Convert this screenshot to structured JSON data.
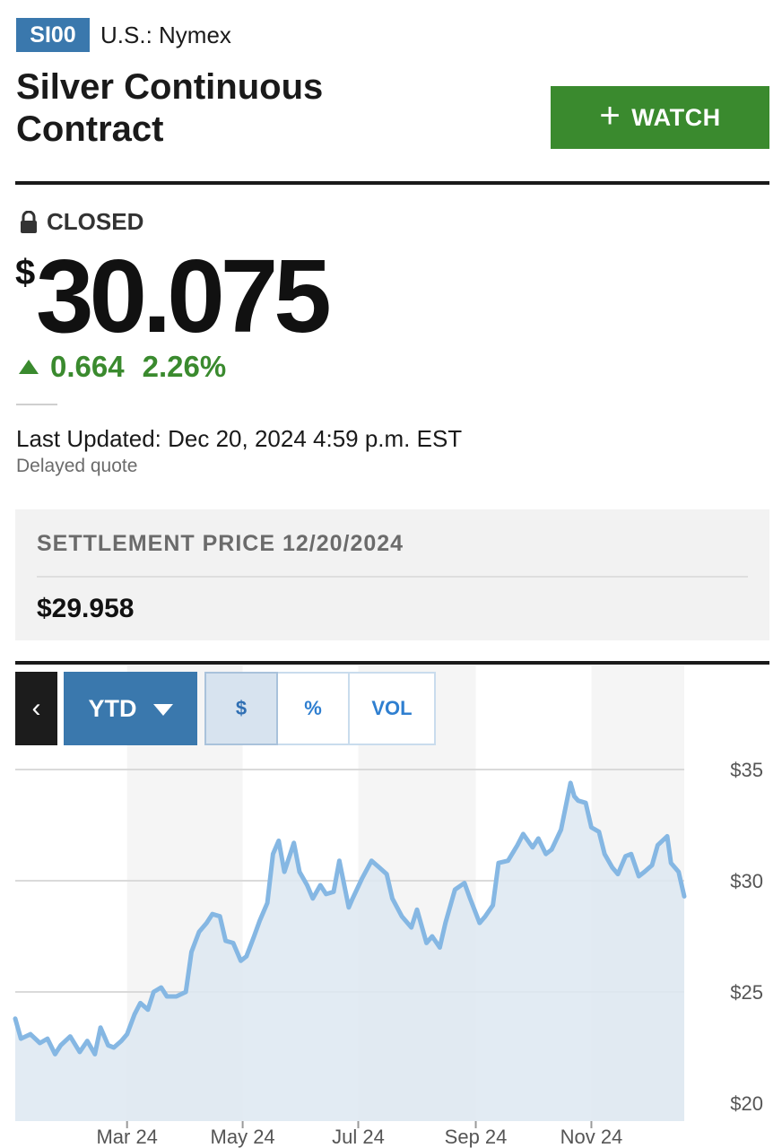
{
  "header": {
    "symbol": "SI00",
    "exchange": "U.S.: Nymex",
    "title": "Silver Continuous Contract",
    "watch_label": "WATCH"
  },
  "quote": {
    "status": "CLOSED",
    "currency_symbol": "$",
    "price": "30.075",
    "change": "0.664",
    "change_pct": "2.26%",
    "direction": "up",
    "last_updated": "Last Updated: Dec 20, 2024 4:59 p.m. EST",
    "delay_note": "Delayed quote"
  },
  "settlement": {
    "label": "SETTLEMENT PRICE 12/20/2024",
    "value": "$29.958"
  },
  "chart_controls": {
    "prev_icon": "chevron-left-icon",
    "range_label": "YTD",
    "modes": [
      "$",
      "%",
      "VOL"
    ],
    "active_mode": "$"
  },
  "colors": {
    "accent_blue": "#3a78ad",
    "watch_green": "#3a8a2e",
    "positive_green": "#3a8a2e",
    "line_blue": "#85b7e3",
    "fill_blue": "#dde7f1"
  },
  "chart_data": {
    "type": "area",
    "title": "",
    "xlabel": "",
    "ylabel": "",
    "x_ticks": [
      "Mar 24",
      "May 24",
      "Jul 24",
      "Sep 24",
      "Nov 24"
    ],
    "y_ticks": [
      "$20",
      "$25",
      "$30",
      "$35"
    ],
    "ylim": [
      20,
      35
    ],
    "xlim": [
      "2024-01-02",
      "2024-12-20"
    ],
    "grid": true,
    "legend": "none",
    "series": [
      {
        "points": [
          [
            "2024-01-02",
            23.8
          ],
          [
            "2024-01-05",
            22.9
          ],
          [
            "2024-01-10",
            23.1
          ],
          [
            "2024-01-15",
            22.7
          ],
          [
            "2024-01-19",
            22.9
          ],
          [
            "2024-01-23",
            22.2
          ],
          [
            "2024-01-26",
            22.6
          ],
          [
            "2024-01-31",
            23.0
          ],
          [
            "2024-02-05",
            22.3
          ],
          [
            "2024-02-09",
            22.8
          ],
          [
            "2024-02-13",
            22.2
          ],
          [
            "2024-02-16",
            23.4
          ],
          [
            "2024-02-20",
            22.6
          ],
          [
            "2024-02-23",
            22.5
          ],
          [
            "2024-02-27",
            22.8
          ],
          [
            "2024-03-01",
            23.1
          ],
          [
            "2024-03-05",
            24.0
          ],
          [
            "2024-03-08",
            24.5
          ],
          [
            "2024-03-12",
            24.2
          ],
          [
            "2024-03-15",
            25.0
          ],
          [
            "2024-03-19",
            25.2
          ],
          [
            "2024-03-22",
            24.8
          ],
          [
            "2024-03-27",
            24.8
          ],
          [
            "2024-04-01",
            25.0
          ],
          [
            "2024-04-04",
            26.8
          ],
          [
            "2024-04-08",
            27.7
          ],
          [
            "2024-04-12",
            28.1
          ],
          [
            "2024-04-15",
            28.5
          ],
          [
            "2024-04-19",
            28.4
          ],
          [
            "2024-04-22",
            27.3
          ],
          [
            "2024-04-26",
            27.2
          ],
          [
            "2024-04-30",
            26.4
          ],
          [
            "2024-05-03",
            26.6
          ],
          [
            "2024-05-07",
            27.5
          ],
          [
            "2024-05-10",
            28.2
          ],
          [
            "2024-05-14",
            29.0
          ],
          [
            "2024-05-17",
            31.2
          ],
          [
            "2024-05-20",
            31.8
          ],
          [
            "2024-05-23",
            30.4
          ],
          [
            "2024-05-28",
            31.7
          ],
          [
            "2024-05-31",
            30.4
          ],
          [
            "2024-06-04",
            29.8
          ],
          [
            "2024-06-07",
            29.2
          ],
          [
            "2024-06-11",
            29.8
          ],
          [
            "2024-06-14",
            29.4
          ],
          [
            "2024-06-18",
            29.5
          ],
          [
            "2024-06-21",
            30.9
          ],
          [
            "2024-06-26",
            28.8
          ],
          [
            "2024-06-28",
            29.2
          ],
          [
            "2024-07-03",
            30.1
          ],
          [
            "2024-07-08",
            30.9
          ],
          [
            "2024-07-12",
            30.6
          ],
          [
            "2024-07-16",
            30.3
          ],
          [
            "2024-07-19",
            29.2
          ],
          [
            "2024-07-24",
            28.4
          ],
          [
            "2024-07-29",
            27.9
          ],
          [
            "2024-08-01",
            28.7
          ],
          [
            "2024-08-06",
            27.2
          ],
          [
            "2024-08-09",
            27.5
          ],
          [
            "2024-08-13",
            27.0
          ],
          [
            "2024-08-16",
            28.1
          ],
          [
            "2024-08-21",
            29.6
          ],
          [
            "2024-08-26",
            29.9
          ],
          [
            "2024-08-29",
            29.2
          ],
          [
            "2024-09-03",
            28.1
          ],
          [
            "2024-09-06",
            28.4
          ],
          [
            "2024-09-10",
            28.9
          ],
          [
            "2024-09-13",
            30.8
          ],
          [
            "2024-09-18",
            30.9
          ],
          [
            "2024-09-23",
            31.6
          ],
          [
            "2024-09-26",
            32.1
          ],
          [
            "2024-10-01",
            31.5
          ],
          [
            "2024-10-04",
            31.9
          ],
          [
            "2024-10-08",
            31.2
          ],
          [
            "2024-10-11",
            31.4
          ],
          [
            "2024-10-16",
            32.3
          ],
          [
            "2024-10-21",
            34.4
          ],
          [
            "2024-10-23",
            33.8
          ],
          [
            "2024-10-25",
            33.6
          ],
          [
            "2024-10-29",
            33.5
          ],
          [
            "2024-11-01",
            32.4
          ],
          [
            "2024-11-05",
            32.2
          ],
          [
            "2024-11-08",
            31.2
          ],
          [
            "2024-11-12",
            30.6
          ],
          [
            "2024-11-15",
            30.3
          ],
          [
            "2024-11-19",
            31.1
          ],
          [
            "2024-11-22",
            31.2
          ],
          [
            "2024-11-26",
            30.2
          ],
          [
            "2024-11-29",
            30.4
          ],
          [
            "2024-12-03",
            30.7
          ],
          [
            "2024-12-06",
            31.6
          ],
          [
            "2024-12-11",
            32.0
          ],
          [
            "2024-12-13",
            30.8
          ],
          [
            "2024-12-17",
            30.4
          ],
          [
            "2024-12-20",
            29.3
          ]
        ]
      }
    ]
  }
}
